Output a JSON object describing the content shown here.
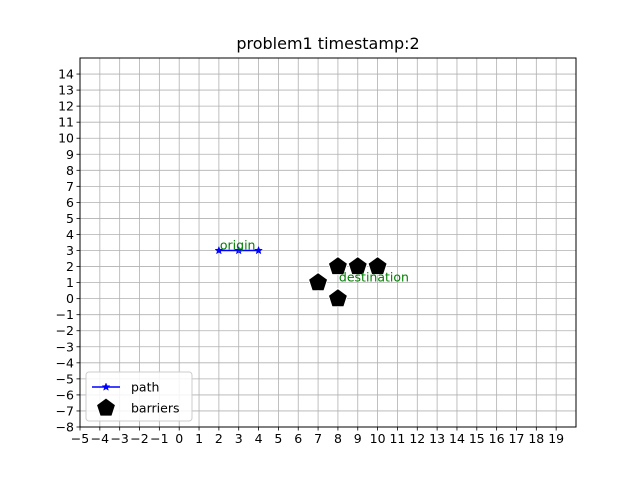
{
  "chart_data": {
    "type": "scatter",
    "title": "problem1 timestamp:2",
    "xlabel": "",
    "ylabel": "",
    "xlim": [
      -5,
      20
    ],
    "ylim": [
      -8,
      15
    ],
    "xticks": [
      -5,
      -4,
      -3,
      -2,
      -1,
      0,
      1,
      2,
      3,
      4,
      5,
      6,
      7,
      8,
      9,
      10,
      11,
      12,
      13,
      14,
      15,
      16,
      17,
      18,
      19
    ],
    "yticks": [
      -8,
      -7,
      -6,
      -5,
      -4,
      -3,
      -2,
      -1,
      0,
      1,
      2,
      3,
      4,
      5,
      6,
      7,
      8,
      9,
      10,
      11,
      12,
      13,
      14
    ],
    "grid": true,
    "legend_position": "lower-left",
    "series": [
      {
        "name": "path",
        "kind": "line-with-star-markers",
        "color": "#0000ff",
        "x": [
          2,
          3,
          4
        ],
        "y": [
          3,
          3,
          3
        ]
      },
      {
        "name": "barriers",
        "kind": "pentagon-markers",
        "color": "#000000",
        "x": [
          7,
          8,
          9,
          10,
          8
        ],
        "y": [
          1,
          2,
          2,
          2,
          0
        ]
      }
    ],
    "annotations": [
      {
        "text": "origin",
        "x": 2,
        "y": 3,
        "color": "#008000"
      },
      {
        "text": "destination",
        "x": 8,
        "y": 1,
        "color": "#008000"
      }
    ]
  }
}
